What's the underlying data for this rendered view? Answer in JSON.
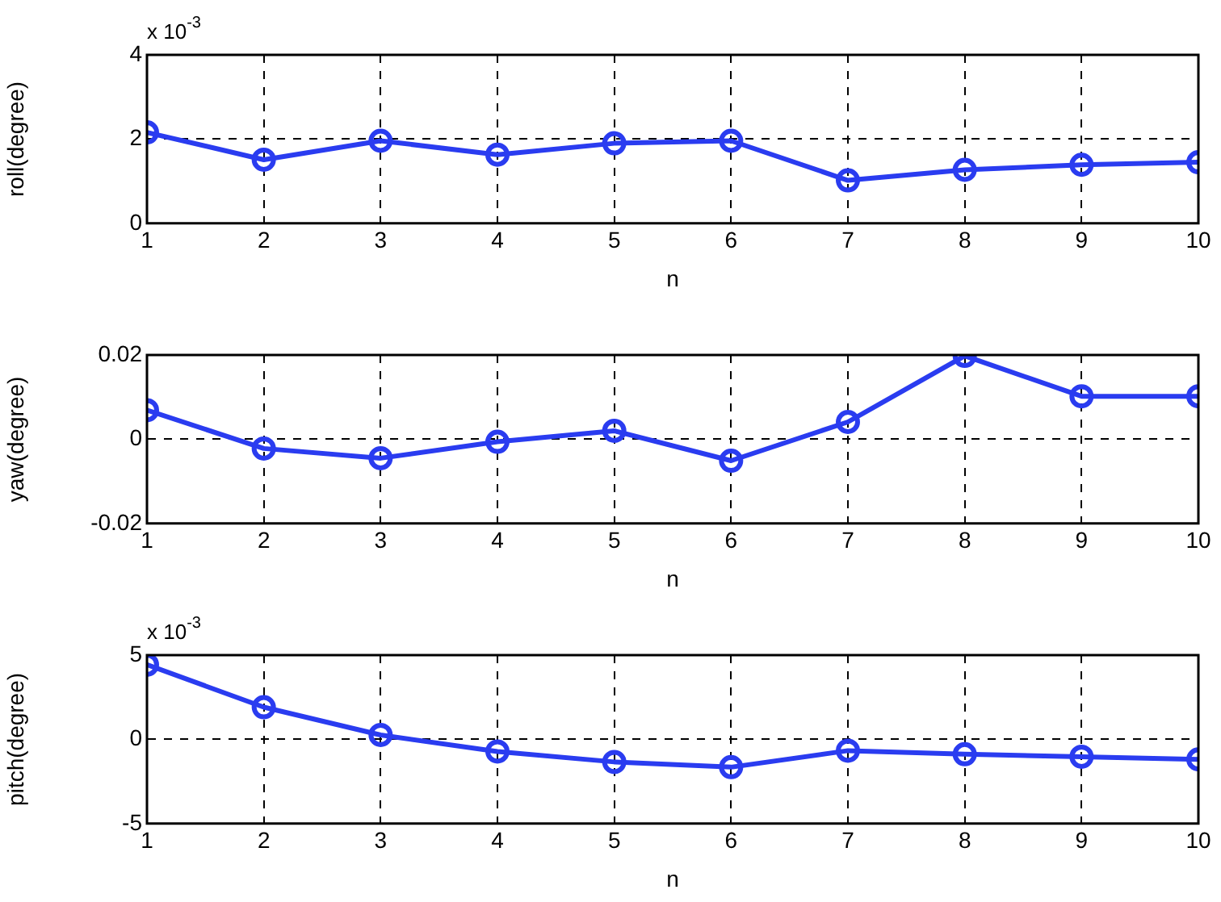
{
  "chart_data": [
    {
      "type": "line",
      "xlabel": "n",
      "ylabel": "roll(degree)",
      "annotations": [
        "x 10$^{-3}$"
      ],
      "x": [
        1,
        2,
        3,
        4,
        5,
        6,
        7,
        8,
        9,
        10
      ],
      "xlim": [
        1,
        10
      ],
      "xticks": [
        1,
        2,
        3,
        4,
        5,
        6,
        7,
        8,
        9,
        10
      ],
      "ylim": [
        0,
        4
      ],
      "yticks": [
        0,
        2,
        4
      ],
      "grid": true,
      "marker": "circle",
      "line_style": "solid",
      "series": [
        {
          "color": "#2a3cf0",
          "values": [
            2.16,
            1.51,
            1.96,
            1.63,
            1.9,
            1.96,
            1.02,
            1.27,
            1.39,
            1.45
          ]
        }
      ]
    },
    {
      "type": "line",
      "xlabel": "n",
      "ylabel": "yaw(degree)",
      "x": [
        1,
        2,
        3,
        4,
        5,
        6,
        7,
        8,
        9,
        10
      ],
      "xlim": [
        1,
        10
      ],
      "xticks": [
        1,
        2,
        3,
        4,
        5,
        6,
        7,
        8,
        9,
        10
      ],
      "ylim": [
        -0.02,
        0.02
      ],
      "yticks": [
        -0.02,
        0,
        0.02
      ],
      "grid": true,
      "marker": "circle",
      "line_style": "solid",
      "series": [
        {
          "color": "#2a3cf0",
          "values": [
            0.0069,
            -0.0022,
            -0.0045,
            -0.0006,
            0.002,
            -0.0051,
            0.0041,
            0.0198,
            0.0102,
            0.0102
          ]
        }
      ]
    },
    {
      "type": "line",
      "xlabel": "n",
      "ylabel": "pitch(degree)",
      "annotations": [
        "x 10$^{-3}$"
      ],
      "x": [
        1,
        2,
        3,
        4,
        5,
        6,
        7,
        8,
        9,
        10
      ],
      "xlim": [
        1,
        10
      ],
      "xticks": [
        1,
        2,
        3,
        4,
        5,
        6,
        7,
        8,
        9,
        10
      ],
      "ylim": [
        -5,
        5
      ],
      "yticks": [
        -5,
        0,
        5
      ],
      "grid": true,
      "marker": "circle",
      "line_style": "solid",
      "series": [
        {
          "color": "#2a3cf0",
          "values": [
            4.43,
            1.91,
            0.26,
            -0.72,
            -1.34,
            -1.65,
            -0.67,
            -0.88,
            -1.03,
            -1.19
          ]
        }
      ]
    }
  ]
}
